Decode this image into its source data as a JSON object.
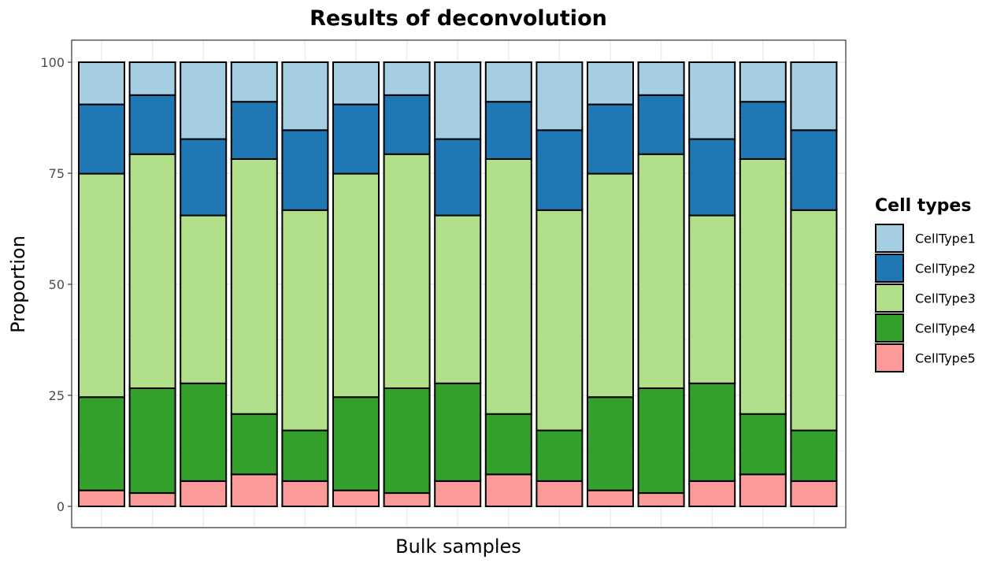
{
  "chart_data": {
    "type": "bar",
    "stacked": true,
    "title": "Results of deconvolution",
    "xlabel": "Bulk samples",
    "ylabel": "Proportion",
    "ylim": [
      0,
      100
    ],
    "yticks": [
      0,
      25,
      50,
      75,
      100
    ],
    "x_tick_labels_shown": false,
    "grid": true,
    "legend": {
      "title": "Cell types",
      "position": "right"
    },
    "series": [
      {
        "name": "CellType5",
        "color": "#FB9A99",
        "values": [
          3.6,
          3.0,
          5.7,
          7.2,
          5.7,
          3.6,
          3.0,
          5.7,
          7.2,
          5.7,
          3.6,
          3.0,
          5.7,
          7.2,
          5.7
        ]
      },
      {
        "name": "CellType4",
        "color": "#33A02C",
        "values": [
          21.0,
          23.6,
          22.0,
          13.6,
          11.4,
          21.0,
          23.6,
          22.0,
          13.6,
          11.4,
          21.0,
          23.6,
          22.0,
          13.6,
          11.4
        ]
      },
      {
        "name": "CellType3",
        "color": "#B2DF8A",
        "values": [
          50.3,
          52.7,
          37.8,
          57.4,
          49.6,
          50.3,
          52.7,
          37.8,
          57.4,
          49.6,
          50.3,
          52.7,
          37.8,
          57.4,
          49.6
        ]
      },
      {
        "name": "CellType2",
        "color": "#1F78B4",
        "values": [
          15.6,
          13.3,
          17.2,
          12.9,
          18.0,
          15.6,
          13.3,
          17.2,
          12.9,
          18.0,
          15.6,
          13.3,
          17.2,
          12.9,
          18.0
        ]
      },
      {
        "name": "CellType1",
        "color": "#A6CEE3",
        "values": [
          9.5,
          7.4,
          17.3,
          8.9,
          15.3,
          9.5,
          7.4,
          17.3,
          8.9,
          15.3,
          9.5,
          7.4,
          17.3,
          8.9,
          15.3
        ]
      }
    ]
  }
}
